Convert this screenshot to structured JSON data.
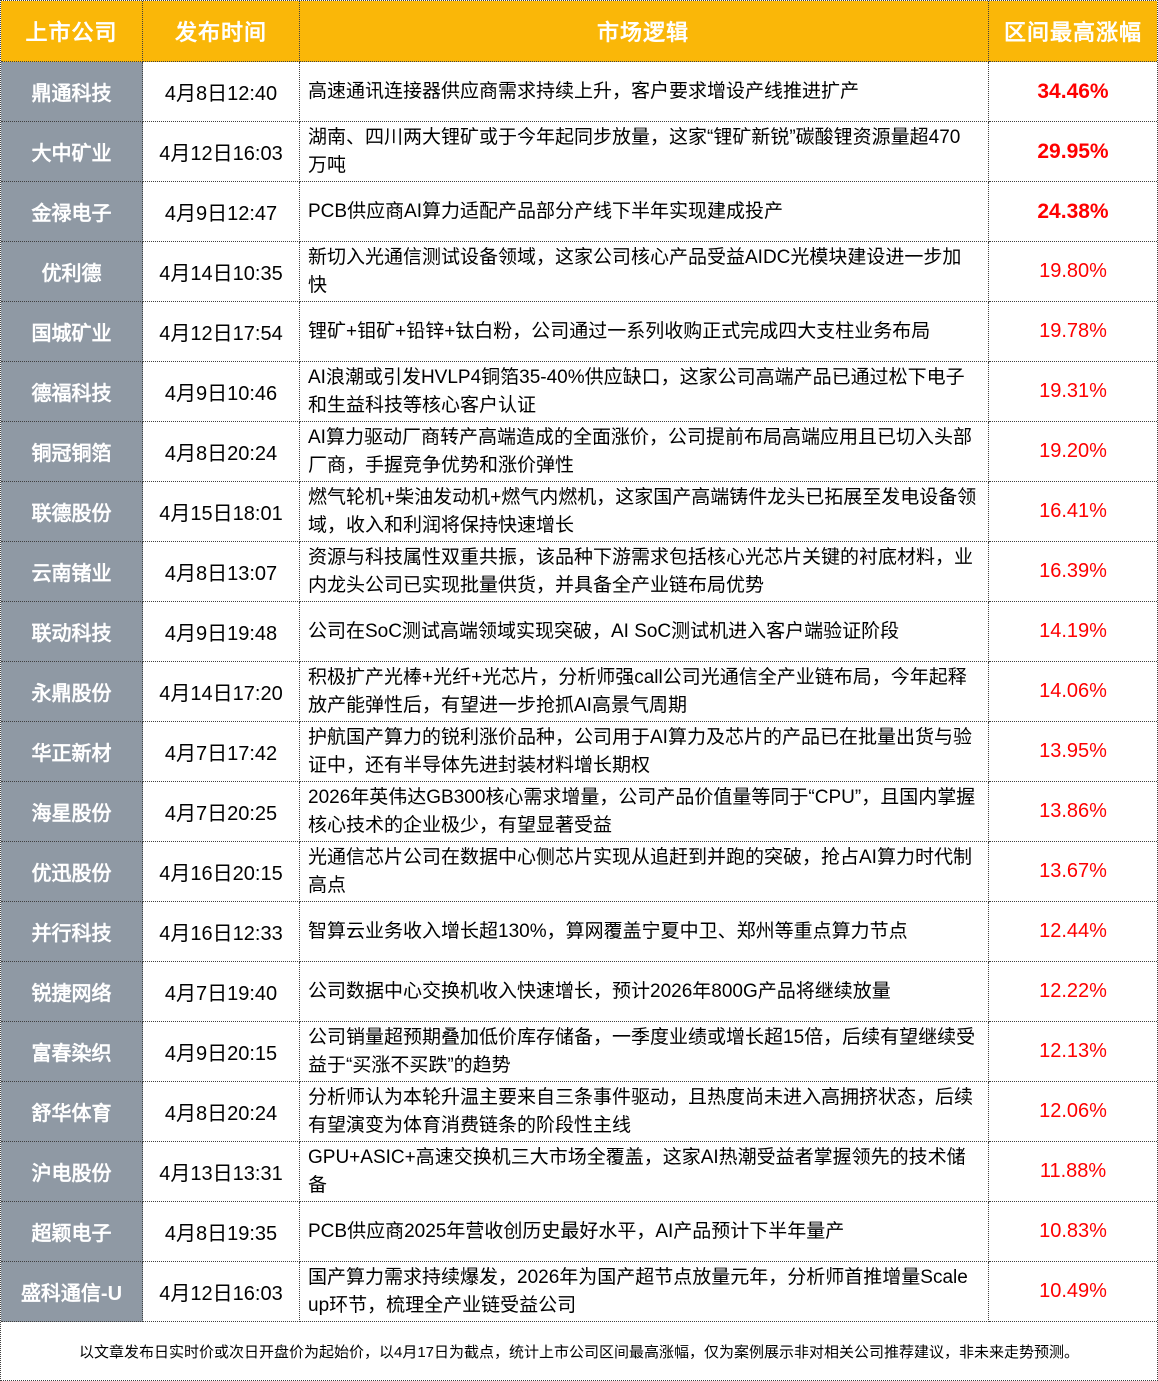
{
  "chart_data": {
    "type": "table",
    "columns": [
      {
        "key": "company",
        "label": "上市公司"
      },
      {
        "key": "time",
        "label": "发布时间"
      },
      {
        "key": "logic",
        "label": "市场逻辑"
      },
      {
        "key": "gain",
        "label": "区间最高涨幅"
      }
    ],
    "rows": [
      {
        "company": "鼎通科技",
        "time": "4月8日12:40",
        "logic": "高速通讯连接器供应商需求持续上升，客户要求增设产线推进扩产",
        "gain": "34.46%",
        "gain_bold": true
      },
      {
        "company": "大中矿业",
        "time": "4月12日16:03",
        "logic": "湖南、四川两大锂矿或于今年起同步放量，这家“锂矿新锐”碳酸锂资源量超470万吨",
        "gain": "29.95%",
        "gain_bold": true
      },
      {
        "company": "金禄电子",
        "time": "4月9日12:47",
        "logic": "PCB供应商AI算力适配产品部分产线下半年实现建成投产",
        "gain": "24.38%",
        "gain_bold": true
      },
      {
        "company": "优利德",
        "time": "4月14日10:35",
        "logic": "新切入光通信测试设备领域，这家公司核心产品受益AIDC光模块建设进一步加快",
        "gain": "19.80%",
        "gain_bold": false
      },
      {
        "company": "国城矿业",
        "time": "4月12日17:54",
        "logic": "锂矿+钼矿+铅锌+钛白粉，公司通过一系列收购正式完成四大支柱业务布局",
        "gain": "19.78%",
        "gain_bold": false
      },
      {
        "company": "德福科技",
        "time": "4月9日10:46",
        "logic": "AI浪潮或引发HVLP4铜箔35-40%供应缺口，这家公司高端产品已通过松下电子和生益科技等核心客户认证",
        "gain": "19.31%",
        "gain_bold": false
      },
      {
        "company": "铜冠铜箔",
        "time": "4月8日20:24",
        "logic": "AI算力驱动厂商转产高端造成的全面涨价，公司提前布局高端应用且已切入头部厂商，手握竞争优势和涨价弹性",
        "gain": "19.20%",
        "gain_bold": false
      },
      {
        "company": "联德股份",
        "time": "4月15日18:01",
        "logic": "燃气轮机+柴油发动机+燃气内燃机，这家国产高端铸件龙头已拓展至发电设备领域，收入和利润将保持快速增长",
        "gain": "16.41%",
        "gain_bold": false
      },
      {
        "company": "云南锗业",
        "time": "4月8日13:07",
        "logic": "资源与科技属性双重共振，该品种下游需求包括核心光芯片关键的衬底材料，业内龙头公司已实现批量供货，并具备全产业链布局优势",
        "gain": "16.39%",
        "gain_bold": false
      },
      {
        "company": "联动科技",
        "time": "4月9日19:48",
        "logic": "公司在SoC测试高端领域实现突破，AI SoC测试机进入客户端验证阶段",
        "gain": "14.19%",
        "gain_bold": false
      },
      {
        "company": "永鼎股份",
        "time": "4月14日17:20",
        "logic": "积极扩产光棒+光纤+光芯片，分析师强call公司光通信全产业链布局，今年起释放产能弹性后，有望进一步抢抓AI高景气周期",
        "gain": "14.06%",
        "gain_bold": false
      },
      {
        "company": "华正新材",
        "time": "4月7日17:42",
        "logic": "护航国产算力的锐利涨价品种，公司用于AI算力及芯片的产品已在批量出货与验证中，还有半导体先进封装材料增长期权",
        "gain": "13.95%",
        "gain_bold": false
      },
      {
        "company": "海星股份",
        "time": "4月7日20:25",
        "logic": "2026年英伟达GB300核心需求增量，公司产品价值量等同于“CPU”，且国内掌握核心技术的企业极少，有望显著受益",
        "gain": "13.86%",
        "gain_bold": false
      },
      {
        "company": "优迅股份",
        "time": "4月16日20:15",
        "logic": "光通信芯片公司在数据中心侧芯片实现从追赶到并跑的突破，抢占AI算力时代制高点",
        "gain": "13.67%",
        "gain_bold": false
      },
      {
        "company": "并行科技",
        "time": "4月16日12:33",
        "logic": "智算云业务收入增长超130%，算网覆盖宁夏中卫、郑州等重点算力节点",
        "gain": "12.44%",
        "gain_bold": false
      },
      {
        "company": "锐捷网络",
        "time": "4月7日19:40",
        "logic": "公司数据中心交换机收入快速增长，预计2026年800G产品将继续放量",
        "gain": "12.22%",
        "gain_bold": false
      },
      {
        "company": "富春染织",
        "time": "4月9日20:15",
        "logic": "公司销量超预期叠加低价库存储备，一季度业绩或增长超15倍，后续有望继续受益于“买涨不买跌”的趋势",
        "gain": "12.13%",
        "gain_bold": false
      },
      {
        "company": "舒华体育",
        "time": "4月8日20:24",
        "logic": "分析师认为本轮升温主要来自三条事件驱动，且热度尚未进入高拥挤状态，后续有望演变为体育消费链条的阶段性主线",
        "gain": "12.06%",
        "gain_bold": false
      },
      {
        "company": "沪电股份",
        "time": "4月13日13:31",
        "logic": "GPU+ASIC+高速交换机三大市场全覆盖，这家AI热潮受益者掌握领先的技术储备",
        "gain": "11.88%",
        "gain_bold": false
      },
      {
        "company": "超颖电子",
        "time": "4月8日19:35",
        "logic": "PCB供应商2025年营收创历史最好水平，AI产品预计下半年量产",
        "gain": "10.83%",
        "gain_bold": false
      },
      {
        "company": "盛科通信-U",
        "time": "4月12日16:03",
        "logic": "国产算力需求持续爆发，2026年为国产超节点放量元年，分析师首推增量Scale up环节，梳理全产业链受益公司",
        "gain": "10.49%",
        "gain_bold": false
      }
    ],
    "footnote": "以文章发布日实时价或次日开盘价为起始价，以4月17日为截点，统计上市公司区间最高涨幅，仅为案例展示非对相关公司推荐建议，非未来走势预测。"
  },
  "colors": {
    "header_bg": "#FAB708",
    "header_text": "#FFFFFF",
    "company_bg": "#8F99A4",
    "company_text": "#FFFFFF",
    "gain_text": "#FE0000",
    "border": "#404040"
  }
}
